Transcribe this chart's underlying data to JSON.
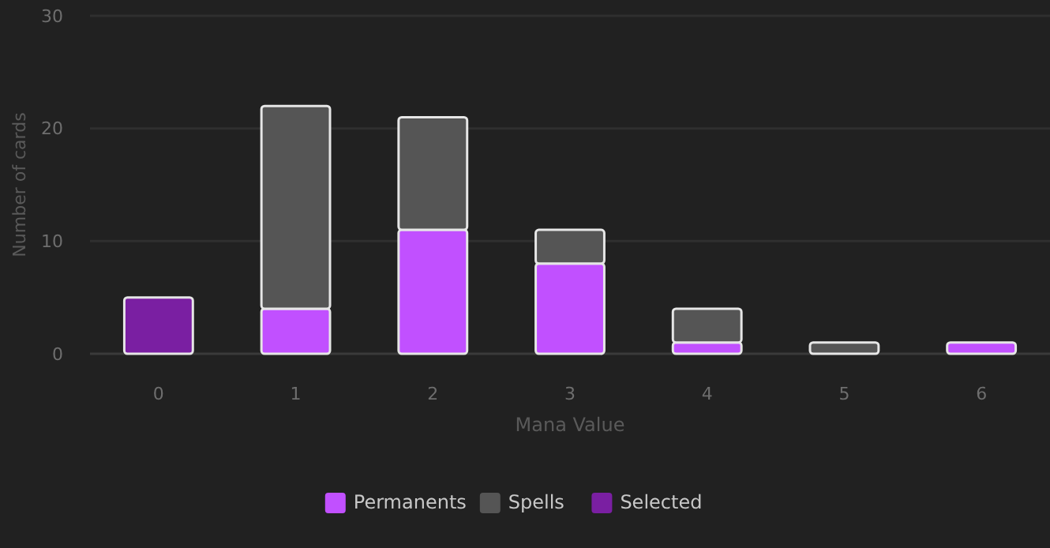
{
  "chart_data": {
    "type": "bar",
    "stacked": true,
    "xlabel": "Mana Value",
    "ylabel": "Number of cards",
    "categories": [
      "0",
      "1",
      "2",
      "3",
      "4",
      "5",
      "6"
    ],
    "series": [
      {
        "name": "Permanents",
        "color": "#c150ff",
        "values": [
          null,
          4,
          11,
          8,
          1,
          null,
          1
        ]
      },
      {
        "name": "Spells",
        "color": "#555555",
        "values": [
          null,
          18,
          10,
          3,
          3,
          1,
          null
        ]
      },
      {
        "name": "Selected",
        "color": "#7a1fa2",
        "values": [
          5,
          null,
          null,
          null,
          null,
          null,
          null
        ]
      }
    ],
    "ylim": [
      0,
      30
    ],
    "yticks": [
      0,
      10,
      20,
      30
    ],
    "grid": "y",
    "legend": "bottom"
  }
}
